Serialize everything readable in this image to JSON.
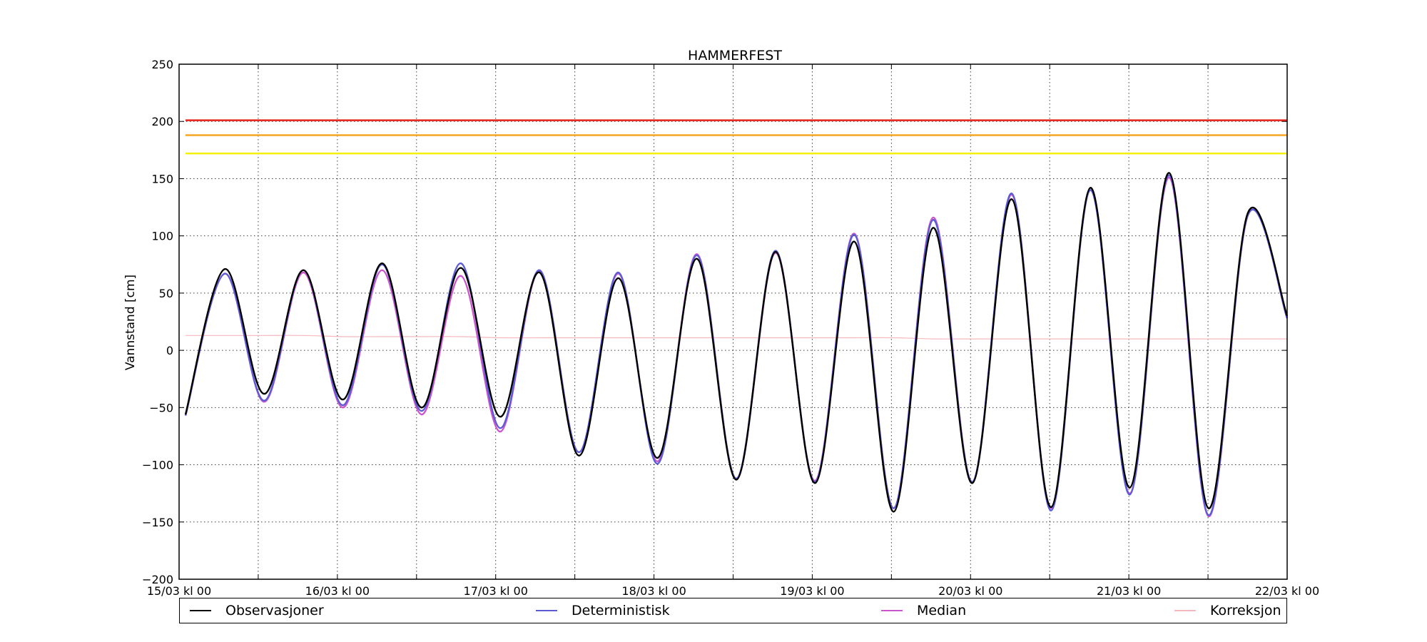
{
  "chart_data": {
    "type": "line",
    "title": "HAMMERFEST",
    "xlabel": "",
    "ylabel": "Vannstand [cm]",
    "xlim": [
      "15/03 kl 00",
      "22/03 kl 00"
    ],
    "ylim": [
      -200,
      250
    ],
    "y_ticks": [
      250,
      200,
      150,
      100,
      50,
      0,
      -50,
      -100,
      -150,
      -200
    ],
    "x_tick_labels": [
      "15/03 kl 00",
      "16/03 kl 00",
      "17/03 kl 00",
      "18/03 kl 00",
      "19/03 kl 00",
      "20/03 kl 00",
      "21/03 kl 00",
      "22/03 kl 00"
    ],
    "grid": true,
    "legend_position": "bottom",
    "x_hours": [
      0,
      6,
      12,
      18,
      24,
      30,
      36,
      42,
      48,
      54,
      60,
      66,
      72,
      78,
      84,
      90,
      96,
      102,
      108,
      114,
      120,
      126,
      132,
      138,
      144,
      150,
      156,
      162,
      168
    ],
    "series": [
      {
        "name": "Observasjoner",
        "color": "#000000",
        "values": [
          -56,
          71,
          -38,
          70,
          -43,
          76,
          -50,
          72,
          -58,
          68,
          -92,
          63,
          -94,
          80,
          -113,
          86,
          -116,
          95,
          -141,
          107,
          -116,
          132,
          -137,
          142,
          -120,
          155,
          -138,
          120,
          30
        ]
      },
      {
        "name": "Deterministisk",
        "color": "#5b5bd6",
        "values": [
          -57,
          67,
          -44,
          70,
          -48,
          75,
          -53,
          76,
          -68,
          70,
          -89,
          68,
          -99,
          83,
          -112,
          87,
          -115,
          101,
          -138,
          114,
          -115,
          137,
          -140,
          140,
          -126,
          153,
          -144,
          118,
          28
        ]
      },
      {
        "name": "Median",
        "color": "#cc55cc",
        "values": [
          -57,
          67,
          -45,
          68,
          -50,
          70,
          -56,
          65,
          -71,
          69,
          -89,
          67,
          -97,
          84,
          -113,
          85,
          -114,
          102,
          -138,
          116,
          -115,
          136,
          -138,
          140,
          -125,
          151,
          -145,
          118,
          28
        ]
      },
      {
        "name": "Korreksjon",
        "color": "#f4b8bd",
        "values": [
          13,
          13,
          13,
          13,
          12,
          12,
          12,
          12,
          11,
          11,
          11,
          11,
          11,
          11,
          11,
          11,
          11,
          11,
          11,
          10,
          10,
          10,
          10,
          10,
          10,
          10,
          10,
          10,
          10
        ]
      }
    ],
    "threshold_lines": [
      {
        "value": 201,
        "color": "#e8201a"
      },
      {
        "value": 188,
        "color": "#f5a623"
      },
      {
        "value": 172,
        "color": "#f5f000"
      }
    ]
  },
  "legend": {
    "observasjoner": "Observasjoner",
    "deterministisk": "Deterministisk",
    "median": "Median",
    "korreksjon": "Korreksjon"
  }
}
